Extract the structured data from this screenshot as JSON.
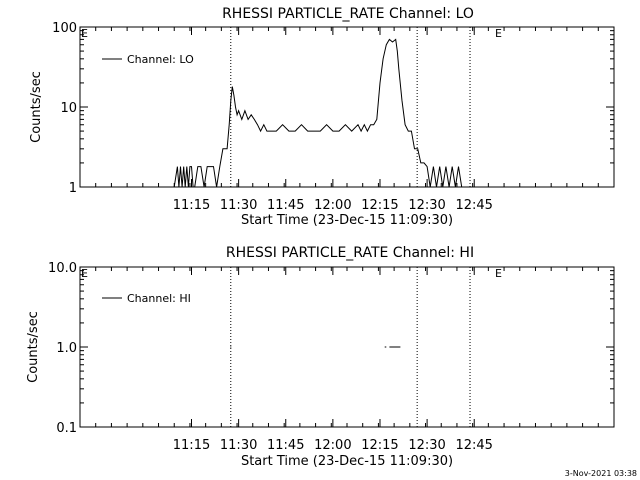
{
  "timestamp": "3-Nov-2021 03:38",
  "chart_data": [
    {
      "type": "line",
      "title": "RHESSI PARTICLE_RATE Channel: LO",
      "xlabel": "Start Time (23-Dec-15 11:09:30)",
      "ylabel": "Counts/sec",
      "yscale": "log",
      "ylim": [
        1,
        100
      ],
      "xlim_minutes": [
        -30,
        140
      ],
      "x_ticks": [
        "11:15",
        "11:30",
        "11:45",
        "12:00",
        "12:15",
        "12:30",
        "12:45"
      ],
      "y_ticks": [
        "1",
        "10",
        "100"
      ],
      "legend": "Channel: LO",
      "legend_placement": "top-left",
      "annotations": [
        "E",
        "E"
      ],
      "vlines_time": [
        "11:27:30",
        "12:26:50",
        "12:43:40"
      ],
      "series": [
        {
          "x": [
            "11:09:30",
            "11:10:30",
            "11:11:00",
            "11:11:30",
            "11:12:00",
            "11:12:30",
            "11:13:00",
            "11:13:30",
            "11:14:00",
            "11:14:30",
            "11:15:00",
            "11:15:30",
            "11:16:00",
            "11:17:00",
            "11:18:00",
            "11:19:00",
            "11:20:00",
            "11:21:00",
            "11:22:00",
            "11:23:00",
            "11:24:00",
            "11:25:00",
            "11:25:40",
            "11:26:20",
            "11:27:00",
            "11:27:30",
            "11:28:00",
            "11:28:30",
            "11:29:00",
            "11:29:30",
            "11:30:00",
            "11:31:00",
            "11:32:00",
            "11:33:00",
            "11:34:00",
            "11:35:00",
            "11:36:00",
            "11:37:00",
            "11:38:00",
            "11:39:00",
            "11:40:00",
            "11:42:00",
            "11:44:00",
            "11:46:00",
            "11:48:00",
            "11:50:00",
            "11:52:00",
            "11:54:00",
            "11:56:00",
            "11:58:00",
            "12:00:00",
            "12:02:00",
            "12:04:00",
            "12:06:00",
            "12:08:00",
            "12:09:00",
            "12:10:00",
            "12:11:00",
            "12:12:00",
            "12:13:00",
            "12:14:00",
            "12:15:00",
            "12:16:00",
            "12:17:00",
            "12:18:00",
            "12:19:00",
            "12:20:00",
            "12:20:30",
            "12:21:00",
            "12:22:00",
            "12:23:00",
            "12:24:00",
            "12:25:00",
            "12:26:00",
            "12:27:00",
            "12:28:00",
            "12:29:00",
            "12:30:00",
            "12:31:00",
            "12:32:00",
            "12:33:00",
            "12:34:00",
            "12:35:00",
            "12:36:00",
            "12:37:00",
            "12:38:00",
            "12:39:00",
            "12:40:00",
            "12:41:00",
            "12:42:00"
          ],
          "y": [
            1,
            1.8,
            1,
            1.8,
            1,
            1.8,
            1,
            1.8,
            1,
            1.8,
            1.8,
            1,
            1,
            1.8,
            1.8,
            1,
            1.8,
            1.8,
            1.8,
            1,
            1.8,
            3,
            3,
            3,
            6,
            12,
            18,
            14,
            10,
            8,
            9,
            7,
            9,
            7,
            8,
            7,
            6,
            5,
            6,
            5,
            5,
            5,
            6,
            5,
            5,
            6,
            5,
            5,
            5,
            6,
            5,
            5,
            6,
            5,
            6,
            5,
            6,
            5,
            6,
            6,
            7,
            20,
            40,
            60,
            70,
            65,
            70,
            50,
            30,
            12,
            6,
            5,
            5,
            3,
            3,
            2,
            2,
            1.8,
            1,
            1.8,
            1,
            1.8,
            1,
            1.8,
            1,
            1.8,
            1,
            1.8,
            1,
            1
          ]
        }
      ]
    },
    {
      "type": "line",
      "title": "RHESSI PARTICLE_RATE Channel: HI",
      "xlabel": "Start Time (23-Dec-15 11:09:30)",
      "ylabel": "Counts/sec",
      "yscale": "log",
      "ylim": [
        0.1,
        10
      ],
      "xlim_minutes": [
        -30,
        140
      ],
      "x_ticks": [
        "11:15",
        "11:30",
        "11:45",
        "12:00",
        "12:15",
        "12:30",
        "12:45"
      ],
      "y_ticks": [
        "0.1",
        "1.0",
        "10.0"
      ],
      "legend": "Channel: HI",
      "legend_placement": "top-left",
      "annotations": [
        "E",
        "E"
      ],
      "vlines_time": [
        "11:27:30",
        "12:26:50",
        "12:43:40"
      ],
      "segments": [
        {
          "x": [
            "11:27:20",
            "11:27:40"
          ],
          "y": [
            1,
            1
          ]
        },
        {
          "x": [
            "12:16:30",
            "12:17:00"
          ],
          "y": [
            1,
            1
          ]
        },
        {
          "x": [
            "12:18:00",
            "12:21:30"
          ],
          "y": [
            1,
            1
          ]
        }
      ]
    }
  ]
}
